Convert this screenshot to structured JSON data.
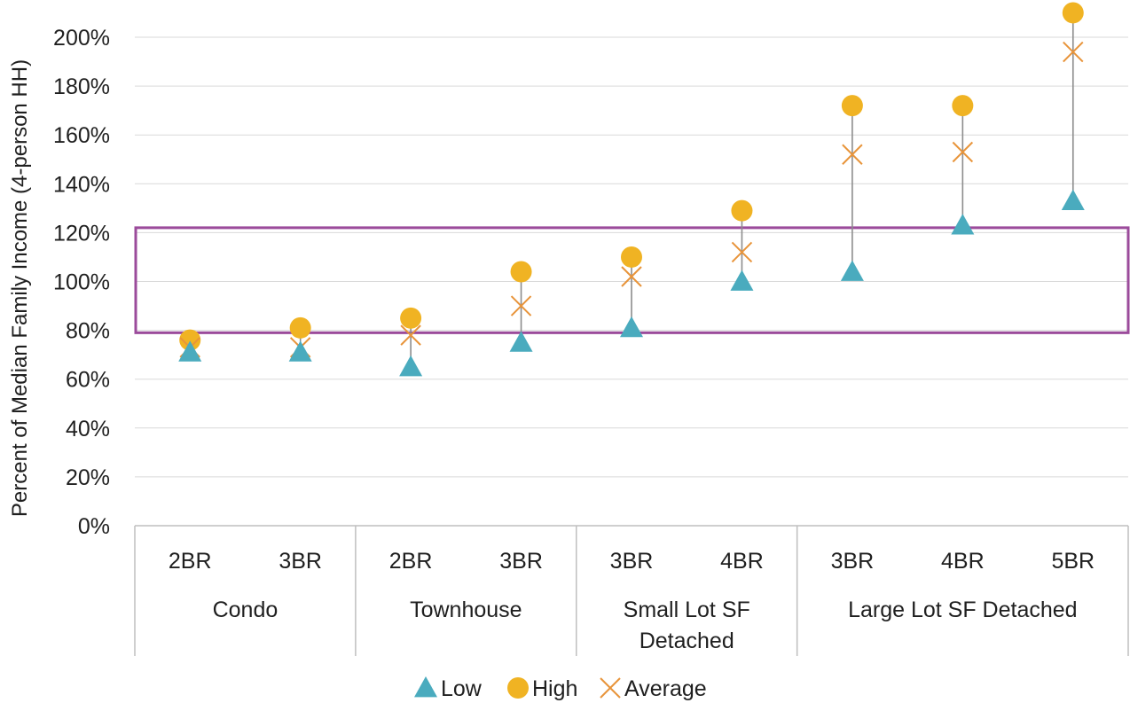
{
  "chart_data": {
    "type": "scatter",
    "ylabel": "Percent of Median Family Income (4-person HH)",
    "ylim": [
      0,
      200
    ],
    "ytick_step": 20,
    "ytick_labels": [
      "0%",
      "20%",
      "40%",
      "60%",
      "80%",
      "100%",
      "120%",
      "140%",
      "160%",
      "180%",
      "200%"
    ],
    "grid": true,
    "legend_position": "bottom-center",
    "categories": [
      "2BR",
      "3BR",
      "2BR",
      "3BR",
      "3BR",
      "4BR",
      "3BR",
      "4BR",
      "5BR"
    ],
    "groups": [
      {
        "label": "Condo",
        "lines": [
          "Condo"
        ],
        "count": 2
      },
      {
        "label": "Townhouse",
        "lines": [
          "Townhouse"
        ],
        "count": 2
      },
      {
        "label": "Small Lot SF Detached",
        "lines": [
          "Small Lot SF",
          "Detached"
        ],
        "count": 2
      },
      {
        "label": "Large Lot SF Detached",
        "lines": [
          "Large Lot SF Detached"
        ],
        "count": 3
      }
    ],
    "series": [
      {
        "name": "Low",
        "marker": "triangle",
        "color": "#4AABBE",
        "values": [
          71,
          71,
          65,
          75,
          81,
          100,
          104,
          123,
          133
        ]
      },
      {
        "name": "High",
        "marker": "circle",
        "color": "#F0B323",
        "values": [
          76,
          81,
          85,
          104,
          110,
          129,
          172,
          172,
          210
        ]
      },
      {
        "name": "Average",
        "marker": "x",
        "color": "#E8943A",
        "values": [
          73,
          73,
          78,
          90,
          102,
          112,
          152,
          153,
          194
        ]
      }
    ],
    "highlight_band": {
      "from": 79,
      "to": 122,
      "color": "#9B4B9B"
    },
    "range_line_color": "#8C8C8C"
  }
}
